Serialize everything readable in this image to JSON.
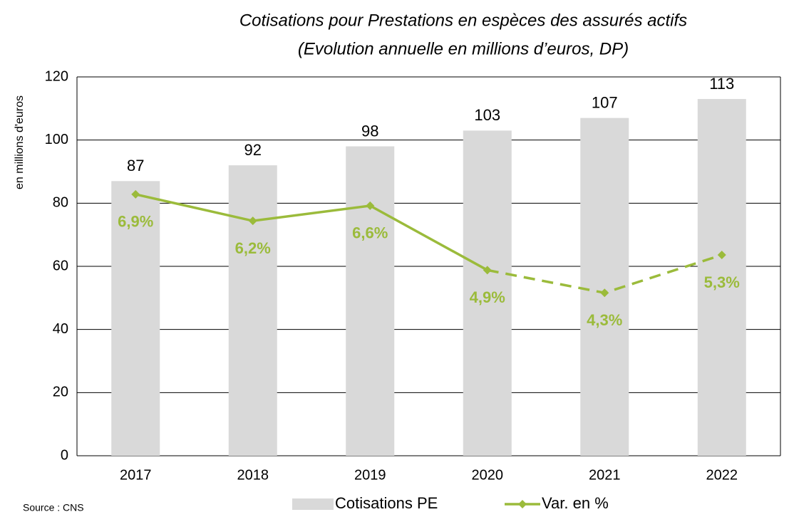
{
  "chart_data": {
    "type": "bar_line",
    "title": "Cotisations pour Prestations en espèces des assurés actifs",
    "subtitle": "(Evolution annuelle en millions d’euros, DP)",
    "y_label": "en millions d'euros",
    "source": "Source : CNS",
    "categories": [
      "2017",
      "2018",
      "2019",
      "2020",
      "2021",
      "2022"
    ],
    "series": [
      {
        "name": "Cotisations PE",
        "type": "bar",
        "color": "#d9d9d9",
        "values": [
          87,
          92,
          98,
          103,
          107,
          113
        ]
      },
      {
        "name": "Var. en %",
        "type": "line",
        "axis": "y2",
        "color": "#9bbb3b",
        "values": [
          6.9,
          6.2,
          6.6,
          4.9,
          4.3,
          5.3
        ],
        "value_labels": [
          "6,9%",
          "6,2%",
          "6,6%",
          "4,9%",
          "4,3%",
          "5,3%"
        ],
        "dash_start": 3
      }
    ],
    "ylim": [
      0,
      120
    ],
    "yticks": [
      0,
      20,
      40,
      60,
      80,
      100,
      120
    ],
    "y2lim": [
      0,
      10
    ],
    "grid": true,
    "legend": "bottom"
  }
}
